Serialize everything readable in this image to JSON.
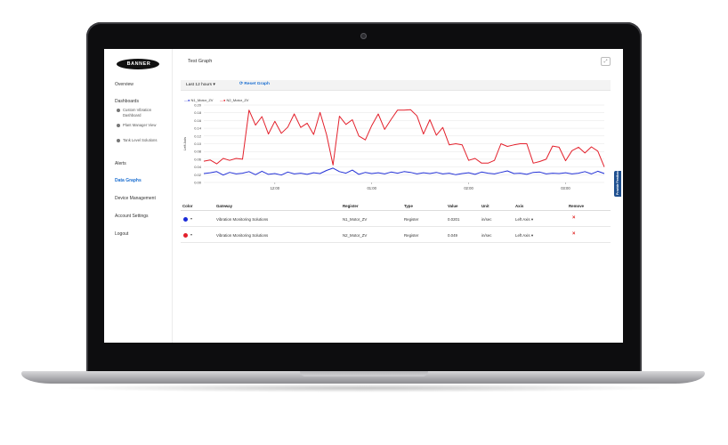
{
  "app": {
    "logo_text": "BANNER",
    "page_title": "Test Graph"
  },
  "sidebar": {
    "items": [
      {
        "label": "Overview"
      },
      {
        "label": "Dashboards"
      },
      {
        "label": "Alerts"
      },
      {
        "label": "Data Graphs"
      },
      {
        "label": "Device Management"
      },
      {
        "label": "Account Settings"
      },
      {
        "label": "Logout"
      }
    ],
    "dashboards": [
      {
        "label": "Custom Vibration Dashboard"
      },
      {
        "label": "Plant Manager View"
      },
      {
        "label": "Tank Level Solutions"
      }
    ]
  },
  "toolbar": {
    "range": "Last 12 hours",
    "reset_label": "Reset Graph"
  },
  "side_tab": "Provide Feedback",
  "chart_data": {
    "type": "line",
    "ylabel": "Left Axis",
    "ylim": [
      0,
      0.2
    ],
    "yticks": [
      "0.20",
      "0.18",
      "0.16",
      "0.14",
      "0.12",
      "0.10",
      "0.08",
      "0.06",
      "0.04",
      "0.02",
      "0.00"
    ],
    "xticks": [
      "12:00",
      "01:00",
      "02:00",
      "03:00"
    ],
    "series": [
      {
        "name": "N1_Motor_ZV",
        "color": "#2331d6",
        "values": [
          0.023,
          0.025,
          0.028,
          0.019,
          0.026,
          0.022,
          0.024,
          0.028,
          0.02,
          0.029,
          0.021,
          0.023,
          0.019,
          0.027,
          0.022,
          0.024,
          0.021,
          0.025,
          0.023,
          0.031,
          0.037,
          0.028,
          0.024,
          0.032,
          0.021,
          0.026,
          0.023,
          0.025,
          0.022,
          0.027,
          0.024,
          0.028,
          0.026,
          0.022,
          0.025,
          0.023,
          0.026,
          0.022,
          0.024,
          0.02,
          0.023,
          0.025,
          0.021,
          0.027,
          0.024,
          0.022,
          0.026,
          0.03,
          0.023,
          0.024,
          0.021,
          0.026,
          0.027,
          0.022,
          0.024,
          0.023,
          0.025,
          0.022,
          0.024,
          0.028,
          0.022,
          0.029,
          0.023
        ]
      },
      {
        "name": "N2_Motor_ZV",
        "color": "#e3202b",
        "values": [
          0.055,
          0.058,
          0.048,
          0.062,
          0.057,
          0.062,
          0.06,
          0.187,
          0.148,
          0.17,
          0.125,
          0.158,
          0.127,
          0.143,
          0.177,
          0.142,
          0.153,
          0.124,
          0.181,
          0.124,
          0.045,
          0.171,
          0.15,
          0.162,
          0.12,
          0.11,
          0.147,
          0.177,
          0.137,
          0.163,
          0.187,
          0.187,
          0.188,
          0.172,
          0.125,
          0.162,
          0.122,
          0.142,
          0.097,
          0.1,
          0.097,
          0.057,
          0.062,
          0.05,
          0.05,
          0.057,
          0.1,
          0.093,
          0.097,
          0.1,
          0.1,
          0.05,
          0.054,
          0.06,
          0.094,
          0.091,
          0.056,
          0.082,
          0.091,
          0.076,
          0.092,
          0.081,
          0.04
        ]
      }
    ]
  },
  "table": {
    "headers": [
      "Color",
      "Gateway",
      "Register",
      "Type",
      "Value",
      "Unit",
      "Axis",
      "Remove"
    ],
    "rows": [
      {
        "color": "#1a2bd8",
        "gateway": "Vibration Monitoring Solutions",
        "register": "N1_Motor_ZV",
        "type": "Register",
        "value": "0.0201",
        "unit": "in/sec",
        "axis": "Left Axis",
        "remove": "×"
      },
      {
        "color": "#e3202b",
        "gateway": "Vibration Monitoring Solutions",
        "register": "N2_Motor_ZV",
        "type": "Register",
        "value": "0.049",
        "unit": "in/sec",
        "axis": "Left Axis",
        "remove": "×"
      }
    ]
  }
}
